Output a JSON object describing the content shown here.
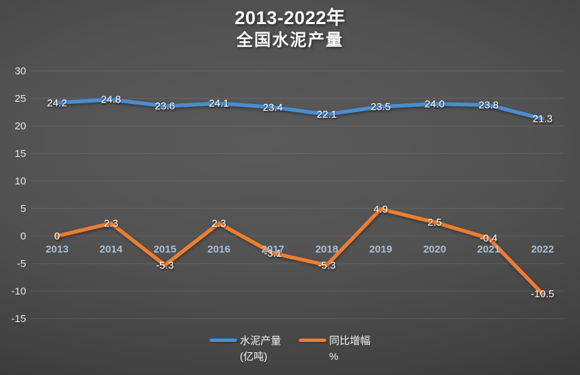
{
  "title": {
    "line1": "2013-2022年",
    "line2": "全国水泥产量"
  },
  "colors": {
    "background_center": "#585858",
    "background_edge": "#262626",
    "series_blue": "#4C8CD0",
    "series_orange": "#ED7D31",
    "x_label": "#a9bfd6",
    "y_tick_label": "#e8e8e8",
    "data_label": "#ffffff"
  },
  "chart_data": {
    "type": "line",
    "title": "2013-2022年 全国水泥产量",
    "categories": [
      "2013",
      "2014",
      "2015",
      "2016",
      "2017",
      "2018",
      "2019",
      "2020",
      "2021",
      "2022"
    ],
    "series": [
      {
        "name": "水泥产量 (亿吨)",
        "color": "#4C8CD0",
        "values": [
          24.2,
          24.8,
          23.6,
          24.1,
          23.4,
          22.1,
          23.5,
          24.0,
          23.8,
          21.3
        ],
        "labels": [
          "24.2",
          "24.8",
          "23.6",
          "24.1",
          "23.4",
          "22.1",
          "23.5",
          "24.0",
          "23.8",
          "21.3"
        ]
      },
      {
        "name": "同比增幅 %",
        "color": "#ED7D31",
        "values": [
          0,
          2.3,
          -5.3,
          2.3,
          -3.1,
          -5.3,
          4.9,
          2.5,
          -0.4,
          -10.5
        ],
        "labels": [
          "0",
          "2.3",
          "-5.3",
          "2.3",
          "-3.1",
          "-5.3",
          "4.9",
          "2.5",
          "-0.4",
          "-10.5"
        ]
      }
    ],
    "xlabel": "",
    "ylabel": "",
    "ylim": [
      -15,
      30
    ],
    "yticks": [
      30,
      25,
      20,
      15,
      10,
      5,
      0,
      -5,
      -10,
      -15
    ],
    "grid": true,
    "legend_position": "bottom"
  },
  "legend": {
    "items": [
      {
        "line1": "水泥产量",
        "line2": "(亿吨)"
      },
      {
        "line1": "同比增幅",
        "line2": "%"
      }
    ]
  }
}
